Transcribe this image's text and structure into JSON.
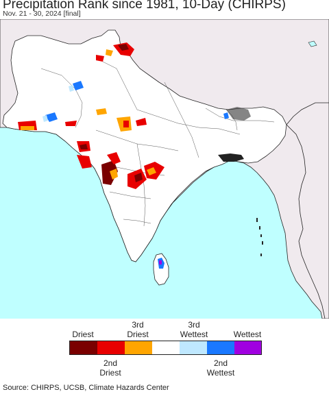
{
  "title": "Precipitation Rank since 1981, 10-Day (CHIRPS)",
  "subtitle": "Nov. 21 - 30, 2024 [final]",
  "legend": {
    "labels_top": [
      "Driest",
      "3rd\nDriest",
      "3rd\nWettest",
      "Wettest"
    ],
    "labels_bottom": [
      "2nd\nDriest",
      "2nd\nWettest"
    ],
    "colors": [
      "#7a0000",
      "#e80000",
      "#ffa500",
      "#ffffff",
      "#bfe8ff",
      "#1a78ff",
      "#a000e0"
    ]
  },
  "source": "Source: CHIRPS, UCSB, Climate Hazards Center"
}
